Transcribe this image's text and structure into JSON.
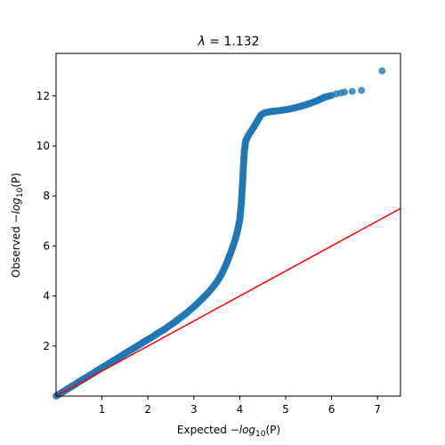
{
  "chart_data": {
    "type": "scatter",
    "title_prefix": "λ",
    "title_suffix": " = 1.132",
    "xlabel_prefix": "Expected −",
    "xlabel_fn": "log",
    "xlabel_sub": "10",
    "xlabel_arg": "(P)",
    "ylabel_prefix": "Observed −",
    "ylabel_fn": "log",
    "ylabel_sub": "10",
    "ylabel_arg": "(P)",
    "xlim": [
      0,
      7.5
    ],
    "ylim": [
      0,
      13.7
    ],
    "x_ticks": [
      1,
      2,
      3,
      4,
      5,
      6,
      7
    ],
    "y_ticks": [
      2,
      4,
      6,
      8,
      10,
      12
    ],
    "grid": false,
    "legend": "none",
    "point_color": "#1f77b4",
    "reference_line": {
      "color": "#ff0000",
      "x": [
        0,
        7.5
      ],
      "y": [
        0,
        7.5
      ]
    },
    "series": [
      {
        "points": [
          [
            0.0,
            0.0
          ],
          [
            0.1,
            0.11
          ],
          [
            0.2,
            0.23
          ],
          [
            0.3,
            0.34
          ],
          [
            0.4,
            0.45
          ],
          [
            0.5,
            0.57
          ],
          [
            0.6,
            0.68
          ],
          [
            0.7,
            0.79
          ],
          [
            0.8,
            0.9
          ],
          [
            0.9,
            1.02
          ],
          [
            1.0,
            1.13
          ],
          [
            1.1,
            1.24
          ],
          [
            1.2,
            1.36
          ],
          [
            1.3,
            1.47
          ],
          [
            1.4,
            1.58
          ],
          [
            1.5,
            1.7
          ],
          [
            1.6,
            1.81
          ],
          [
            1.7,
            1.92
          ],
          [
            1.8,
            2.03
          ],
          [
            1.9,
            2.15
          ],
          [
            2.0,
            2.26
          ],
          [
            2.1,
            2.37
          ],
          [
            2.2,
            2.49
          ],
          [
            2.3,
            2.6
          ],
          [
            2.4,
            2.72
          ],
          [
            2.5,
            2.85
          ],
          [
            2.6,
            2.98
          ],
          [
            2.7,
            3.12
          ],
          [
            2.8,
            3.26
          ],
          [
            2.9,
            3.41
          ],
          [
            3.0,
            3.57
          ],
          [
            3.1,
            3.74
          ],
          [
            3.2,
            3.92
          ],
          [
            3.3,
            4.11
          ],
          [
            3.4,
            4.32
          ],
          [
            3.5,
            4.56
          ],
          [
            3.55,
            4.7
          ],
          [
            3.6,
            4.86
          ],
          [
            3.65,
            5.05
          ],
          [
            3.7,
            5.25
          ],
          [
            3.75,
            5.48
          ],
          [
            3.8,
            5.72
          ],
          [
            3.85,
            5.98
          ],
          [
            3.9,
            6.26
          ],
          [
            3.95,
            6.6
          ],
          [
            4.0,
            7.05
          ],
          [
            4.02,
            7.4
          ],
          [
            4.04,
            7.9
          ],
          [
            4.06,
            8.5
          ],
          [
            4.08,
            9.2
          ],
          [
            4.1,
            9.8
          ],
          [
            4.13,
            10.2
          ],
          [
            4.18,
            10.4
          ],
          [
            4.25,
            10.6
          ],
          [
            4.32,
            10.8
          ],
          [
            4.4,
            11.05
          ],
          [
            4.47,
            11.25
          ],
          [
            4.55,
            11.33
          ],
          [
            4.7,
            11.38
          ],
          [
            4.9,
            11.42
          ],
          [
            5.1,
            11.48
          ],
          [
            5.3,
            11.57
          ],
          [
            5.5,
            11.68
          ],
          [
            5.7,
            11.82
          ],
          [
            5.85,
            11.95
          ],
          [
            6.0,
            12.02
          ],
          [
            6.1,
            12.08
          ],
          [
            6.2,
            12.12
          ],
          [
            6.28,
            12.15
          ],
          [
            6.45,
            12.18
          ],
          [
            6.65,
            12.22
          ],
          [
            7.1,
            13.0
          ]
        ]
      }
    ]
  }
}
